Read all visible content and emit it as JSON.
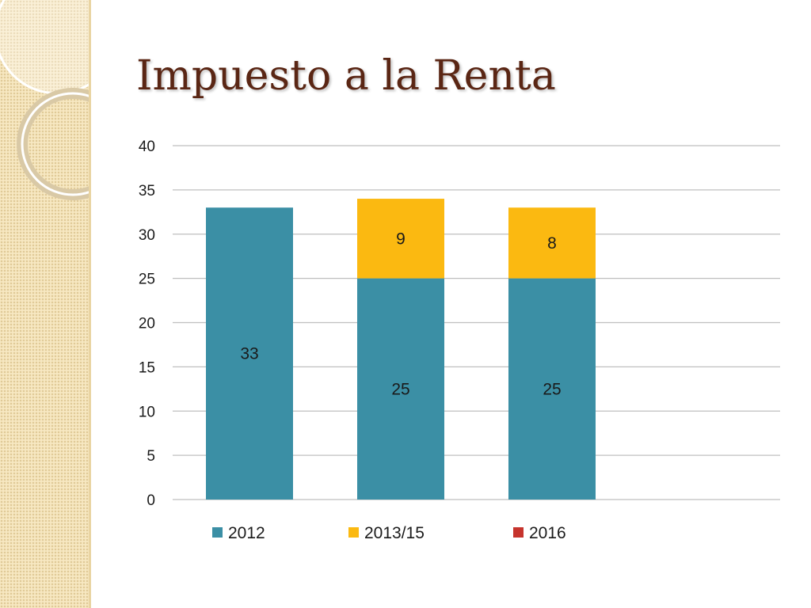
{
  "slide": {
    "title": "Impuesto a la Renta"
  },
  "colors": {
    "title": "#5a2614",
    "series_2012": "#3b8fa5",
    "series_2013_15": "#fbb911",
    "series_2016": "#c6342d",
    "gridline": "#bfbfbf",
    "side_panel": "#f7e8c2"
  },
  "chart_data": {
    "type": "bar",
    "stacked": true,
    "categories": [
      "",
      "",
      ""
    ],
    "series": [
      {
        "name": "2012",
        "color": "#3b8fa5",
        "values": [
          33,
          25,
          25
        ]
      },
      {
        "name": "2013/15",
        "color": "#fbb911",
        "values": [
          0,
          9,
          8
        ]
      },
      {
        "name": "2016",
        "color": "#c6342d",
        "values": [
          0,
          0,
          0
        ]
      }
    ],
    "data_labels": [
      {
        "category": 0,
        "series": 0,
        "text": "33"
      },
      {
        "category": 1,
        "series": 0,
        "text": "25"
      },
      {
        "category": 1,
        "series": 1,
        "text": "9"
      },
      {
        "category": 2,
        "series": 0,
        "text": "25"
      },
      {
        "category": 2,
        "series": 1,
        "text": "8"
      }
    ],
    "ylim": [
      0,
      40
    ],
    "yticks": [
      "0",
      "5",
      "10",
      "15",
      "20",
      "25",
      "30",
      "35",
      "40"
    ],
    "grid": true,
    "legend": "bottom"
  }
}
